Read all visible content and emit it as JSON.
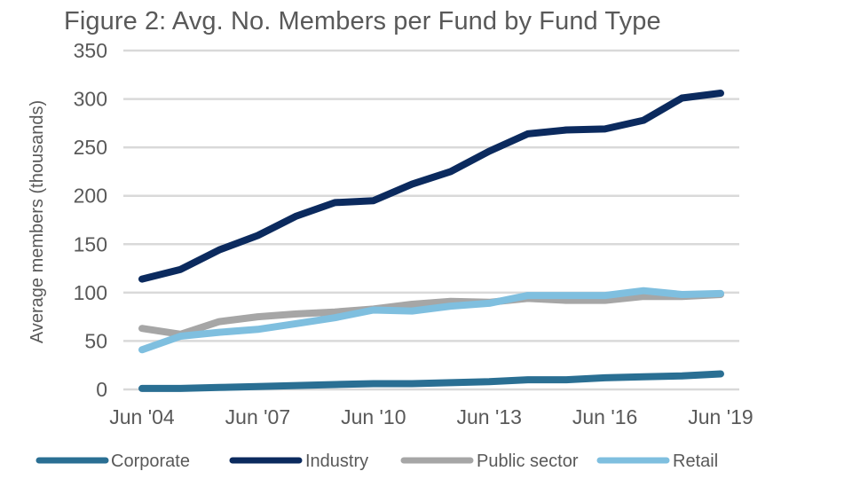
{
  "chart_data": {
    "type": "line",
    "title": "Figure 2: Avg. No. Members per Fund by Fund Type",
    "xlabel": "",
    "ylabel": "Average members (thousands)",
    "ylim": [
      0,
      350
    ],
    "yticks": [
      0,
      50,
      100,
      150,
      200,
      250,
      300,
      350
    ],
    "ytick_labels": [
      "0",
      "50",
      "100",
      "150",
      "200",
      "250",
      "300",
      "350"
    ],
    "x": [
      "Jun '04",
      "Jun '05",
      "Jun '06",
      "Jun '07",
      "Jun '08",
      "Jun '09",
      "Jun '10",
      "Jun '11",
      "Jun '12",
      "Jun '13",
      "Jun '14",
      "Jun '15",
      "Jun '16",
      "Jun '17",
      "Jun '18",
      "Jun '19"
    ],
    "xtick_labels": [
      "Jun '04",
      "Jun '07",
      "Jun '10",
      "Jun '13",
      "Jun '16",
      "Jun '19"
    ],
    "xtick_indices": [
      0,
      3,
      6,
      9,
      12,
      15
    ],
    "grid": true,
    "legend_position": "bottom",
    "series": [
      {
        "name": "Corporate",
        "color": "#2a6f93",
        "values": [
          1,
          1,
          2,
          3,
          4,
          5,
          6,
          6,
          7,
          8,
          10,
          10,
          12,
          13,
          14,
          16
        ]
      },
      {
        "name": "Industry",
        "color": "#0b2a5e",
        "values": [
          114,
          124,
          144,
          159,
          179,
          193,
          195,
          212,
          225,
          246,
          264,
          268,
          269,
          278,
          301,
          306
        ]
      },
      {
        "name": "Public sector",
        "color": "#a6a6a6",
        "values": [
          63,
          57,
          70,
          75,
          78,
          80,
          83,
          88,
          91,
          90,
          94,
          92,
          92,
          96,
          96,
          98
        ]
      },
      {
        "name": "Retail",
        "color": "#7fbfdf",
        "values": [
          41,
          55,
          59,
          62,
          68,
          74,
          82,
          81,
          86,
          89,
          97,
          97,
          97,
          102,
          98,
          99
        ]
      }
    ],
    "draw_order": [
      "Corporate",
      "Industry",
      "Public sector",
      "Retail"
    ]
  }
}
